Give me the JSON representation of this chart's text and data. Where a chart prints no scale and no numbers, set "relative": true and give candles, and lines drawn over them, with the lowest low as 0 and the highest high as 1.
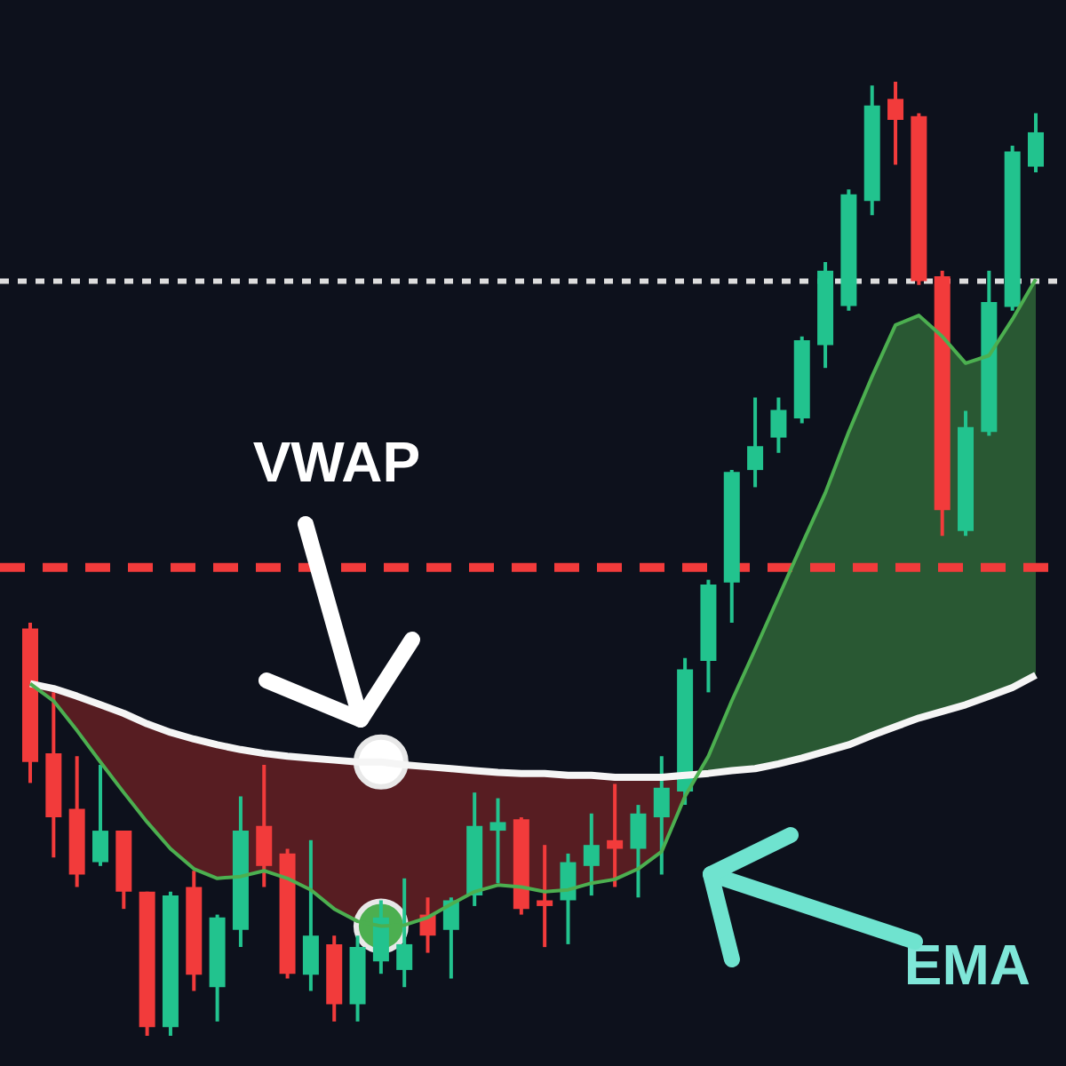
{
  "chart_data": {
    "type": "candlestick",
    "relative": true,
    "legend": false,
    "categories": [
      null,
      null,
      null,
      null,
      null,
      null,
      null,
      null,
      null,
      null,
      null,
      null,
      null,
      null,
      null,
      null,
      null,
      null,
      null,
      null,
      null,
      null,
      null,
      null,
      null,
      null,
      null,
      null,
      null,
      null,
      null,
      null,
      null,
      null,
      null,
      null,
      null,
      null,
      null,
      null,
      null,
      null,
      null,
      null
    ],
    "ohlc": [
      [
        0.427,
        0.433,
        0.265,
        0.287
      ],
      [
        0.296,
        0.36,
        0.187,
        0.229
      ],
      [
        0.238,
        0.293,
        0.156,
        0.169
      ],
      [
        0.182,
        0.284,
        0.178,
        0.215
      ],
      [
        0.215,
        0.215,
        0.133,
        0.151
      ],
      [
        0.151,
        0.151,
        0,
        0.009
      ],
      [
        0.009,
        0.151,
        0,
        0.147
      ],
      [
        0.156,
        0.173,
        0.047,
        0.064
      ],
      [
        0.051,
        0.127,
        0.015,
        0.124
      ],
      [
        0.111,
        0.251,
        0.093,
        0.215
      ],
      [
        0.22,
        0.284,
        0.156,
        0.178
      ],
      [
        0.191,
        0.196,
        0.06,
        0.065
      ],
      [
        0.064,
        0.205,
        0.047,
        0.105
      ],
      [
        0.096,
        0.105,
        0.015,
        0.033
      ],
      [
        0.033,
        0.105,
        0.015,
        0.093
      ],
      [
        0.078,
        0.142,
        0.065,
        0.124
      ],
      [
        0.069,
        0.165,
        0.051,
        0.096
      ],
      [
        0.127,
        0.145,
        0.087,
        0.105
      ],
      [
        0.111,
        0.145,
        0.06,
        0.142
      ],
      [
        0.147,
        0.255,
        0.136,
        0.22
      ],
      [
        0.215,
        0.249,
        0.16,
        0.224
      ],
      [
        0.227,
        0.229,
        0.127,
        0.133
      ],
      [
        0.142,
        0.2,
        0.093,
        0.136
      ],
      [
        0.142,
        0.191,
        0.096,
        0.182
      ],
      [
        0.178,
        0.233,
        0.147,
        0.2
      ],
      [
        0.205,
        0.264,
        0.156,
        0.196
      ],
      [
        0.196,
        0.242,
        0.145,
        0.233
      ],
      [
        0.229,
        0.293,
        0.169,
        0.26
      ],
      [
        0.256,
        0.396,
        0.242,
        0.384
      ],
      [
        0.393,
        0.478,
        0.36,
        0.473
      ],
      [
        0.475,
        0.593,
        0.433,
        0.591
      ],
      [
        0.593,
        0.669,
        0.575,
        0.618
      ],
      [
        0.627,
        0.669,
        0.611,
        0.656
      ],
      [
        0.647,
        0.733,
        0.642,
        0.729
      ],
      [
        0.724,
        0.811,
        0.7,
        0.802
      ],
      [
        0.765,
        0.887,
        0.76,
        0.882
      ],
      [
        0.875,
        0.996,
        0.86,
        0.975
      ],
      [
        0.982,
        1,
        0.913,
        0.96
      ],
      [
        0.964,
        0.967,
        0.787,
        0.791
      ],
      [
        0.796,
        0.802,
        0.524,
        0.551
      ],
      [
        0.529,
        0.655,
        0.524,
        0.638
      ],
      [
        0.633,
        0.802,
        0.629,
        0.769
      ],
      [
        0.764,
        0.933,
        0.76,
        0.927
      ],
      [
        0.911,
        0.967,
        0.905,
        0.947
      ]
    ],
    "colors": [
      "#f23b3b",
      "#f23b3b",
      "#f23b3b",
      "#22c38e",
      "#f23b3b",
      "#f23b3b",
      "#22c38e",
      "#f23b3b",
      "#22c38e",
      "#22c38e",
      "#f23b3b",
      "#f23b3b",
      "#22c38e",
      "#f23b3b",
      "#22c38e",
      "#22c38e",
      "#22c38e",
      "#f23b3b",
      "#22c38e",
      "#22c38e",
      "#22c38e",
      "#f23b3b",
      "#f23b3b",
      "#22c38e",
      "#22c38e",
      "#f23b3b",
      "#22c38e",
      "#22c38e",
      "#22c38e",
      "#22c38e",
      "#22c38e",
      "#22c38e",
      "#22c38e",
      "#22c38e",
      "#22c38e",
      "#22c38e",
      "#22c38e",
      "#f23b3b",
      "#f23b3b",
      "#f23b3b",
      "#22c38e",
      "#22c38e",
      "#22c38e",
      "#22c38e"
    ],
    "series": [
      {
        "name": "VWAP",
        "type": "line",
        "color": "#f5f5f5",
        "values": [
          0.369,
          0.364,
          0.356,
          0.347,
          0.338,
          0.327,
          0.318,
          0.311,
          0.305,
          0.3,
          0.296,
          0.293,
          0.291,
          0.289,
          0.287,
          0.287,
          0.284,
          0.282,
          0.28,
          0.278,
          0.276,
          0.275,
          0.275,
          0.273,
          0.273,
          0.271,
          0.271,
          0.271,
          0.273,
          0.275,
          0.278,
          0.28,
          0.285,
          0.291,
          0.298,
          0.305,
          0.315,
          0.324,
          0.333,
          0.34,
          0.347,
          0.356,
          0.365,
          0.378
        ]
      },
      {
        "name": "EMA",
        "type": "line",
        "color": "#4caf50",
        "values": [
          0.369,
          0.351,
          0.32,
          0.287,
          0.255,
          0.224,
          0.196,
          0.175,
          0.165,
          0.167,
          0.173,
          0.165,
          0.153,
          0.133,
          0.12,
          0.115,
          0.116,
          0.124,
          0.138,
          0.151,
          0.158,
          0.156,
          0.151,
          0.153,
          0.16,
          0.164,
          0.175,
          0.193,
          0.251,
          0.293,
          0.351,
          0.405,
          0.46,
          0.515,
          0.569,
          0.633,
          0.691,
          0.745,
          0.755,
          0.733,
          0.705,
          0.713,
          0.751,
          0.793
        ]
      },
      {
        "type": "scatter",
        "marker": "circle",
        "color": "#ffffff",
        "values": [
          null,
          null,
          null,
          null,
          null,
          null,
          null,
          null,
          null,
          null,
          null,
          null,
          null,
          null,
          null,
          0.287,
          null,
          null,
          null,
          null,
          null,
          null,
          null,
          null,
          null,
          null,
          null,
          null,
          null,
          null,
          null,
          null,
          null,
          null,
          null,
          null,
          null,
          null,
          null,
          null,
          null,
          null,
          null,
          null
        ]
      },
      {
        "type": "scatter",
        "marker": "circle",
        "color": "#4caf50",
        "values": [
          null,
          null,
          null,
          null,
          null,
          null,
          null,
          null,
          null,
          null,
          null,
          null,
          null,
          null,
          null,
          0.115,
          null,
          null,
          null,
          null,
          null,
          null,
          null,
          null,
          null,
          null,
          null,
          null,
          null,
          null,
          null,
          null,
          null,
          null,
          null,
          null,
          null,
          null,
          null,
          null,
          null,
          null,
          null,
          null
        ]
      }
    ],
    "ref_lines": [
      {
        "axis": "y",
        "value": 0.791,
        "color": "#dddddd",
        "line_style": "dotted"
      },
      {
        "axis": "y",
        "value": 0.491,
        "color": "#f23b3b",
        "line_style": "dashed"
      }
    ]
  }
}
